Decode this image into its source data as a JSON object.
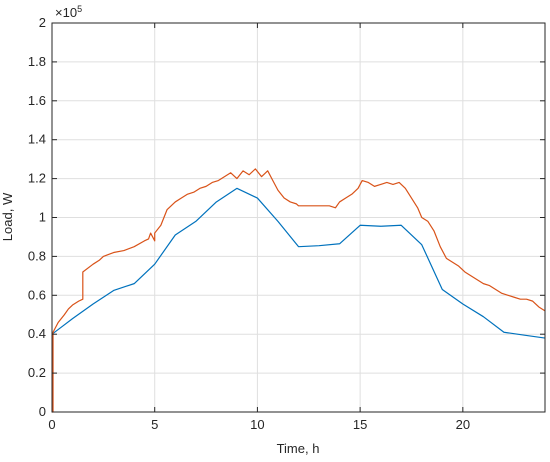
{
  "chart_data": {
    "type": "line",
    "title": "",
    "xlabel": "Time, h",
    "ylabel": "Load, W",
    "exponent_label": "×10",
    "exponent_power": "5",
    "xlim": [
      0,
      24
    ],
    "ylim": [
      0,
      2
    ],
    "y_multiplier": 100000,
    "grid": true,
    "legend": "none",
    "xticks": [
      0,
      5,
      10,
      15,
      20
    ],
    "xtick_labels": [
      "0",
      "5",
      "10",
      "15",
      "20"
    ],
    "yticks": [
      0,
      0.2,
      0.4,
      0.6,
      0.8,
      1,
      1.2,
      1.4,
      1.6,
      1.8,
      2
    ],
    "ytick_labels": [
      "0",
      "0.2",
      "0.4",
      "0.6",
      "0.8",
      "1",
      "1.2",
      "1.4",
      "1.6",
      "1.8",
      "2"
    ],
    "series": [
      {
        "color": "#0072BD",
        "x": [
          0,
          0.5,
          1,
          2,
          3,
          4,
          5,
          6,
          7,
          8,
          9,
          10,
          11,
          12,
          13,
          14,
          15,
          16,
          17,
          18,
          19,
          20,
          21,
          22,
          23,
          24
        ],
        "y": [
          0.4,
          0.44,
          0.48,
          0.555,
          0.625,
          0.66,
          0.76,
          0.91,
          0.98,
          1.08,
          1.15,
          1.1,
          0.98,
          0.85,
          0.855,
          0.865,
          0.96,
          0.955,
          0.96,
          0.86,
          0.63,
          0.555,
          0.49,
          0.41,
          0.395,
          0.38
        ]
      },
      {
        "color": "#D95319",
        "x": [
          0,
          0.05,
          0.05,
          0.3,
          0.6,
          0.8,
          1,
          1.3,
          1.5,
          1.5,
          2,
          2.3,
          2.5,
          3,
          3.5,
          4,
          4.5,
          4.7,
          4.8,
          5,
          5,
          5.3,
          5.6,
          5.8,
          6,
          6.3,
          6.6,
          6.9,
          7.2,
          7.5,
          7.8,
          8.1,
          8.4,
          8.7,
          9,
          9.3,
          9.6,
          9.9,
          10.2,
          10.5,
          10.8,
          11,
          11.3,
          11.6,
          11.9,
          12,
          12.5,
          13,
          13.5,
          13.8,
          14,
          14.3,
          14.6,
          14.9,
          15.1,
          15.4,
          15.7,
          16,
          16.3,
          16.6,
          16.9,
          17.2,
          17.5,
          17.8,
          18,
          18.3,
          18.6,
          18.9,
          19.2,
          19.5,
          19.8,
          20.1,
          20.4,
          20.7,
          21,
          21.3,
          21.6,
          21.9,
          22.2,
          22.5,
          22.8,
          23.1,
          23.4,
          23.7,
          24
        ],
        "y": [
          0,
          0,
          0.41,
          0.46,
          0.5,
          0.53,
          0.55,
          0.57,
          0.58,
          0.72,
          0.76,
          0.78,
          0.8,
          0.82,
          0.83,
          0.85,
          0.88,
          0.89,
          0.92,
          0.88,
          0.92,
          0.96,
          1.04,
          1.06,
          1.08,
          1.1,
          1.12,
          1.13,
          1.15,
          1.16,
          1.18,
          1.19,
          1.21,
          1.23,
          1.2,
          1.24,
          1.22,
          1.25,
          1.21,
          1.24,
          1.18,
          1.14,
          1.1,
          1.08,
          1.07,
          1.06,
          1.06,
          1.06,
          1.06,
          1.05,
          1.08,
          1.1,
          1.12,
          1.15,
          1.19,
          1.18,
          1.16,
          1.17,
          1.18,
          1.17,
          1.18,
          1.15,
          1.1,
          1.05,
          1.0,
          0.98,
          0.93,
          0.85,
          0.79,
          0.77,
          0.75,
          0.72,
          0.7,
          0.68,
          0.66,
          0.65,
          0.63,
          0.61,
          0.6,
          0.59,
          0.58,
          0.58,
          0.57,
          0.54,
          0.52
        ]
      }
    ]
  }
}
